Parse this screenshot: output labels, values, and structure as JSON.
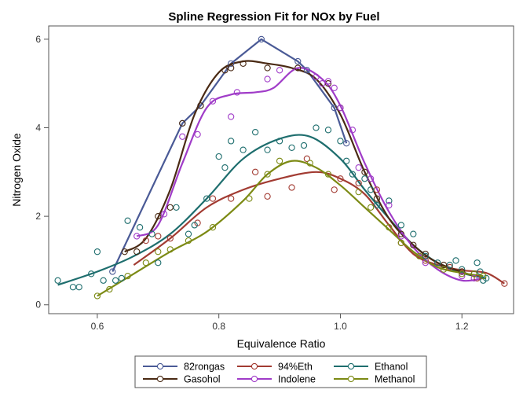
{
  "chart_data": {
    "type": "scatter",
    "title": "Spline Regression Fit for NOx by Fuel",
    "xlabel": "Equivalence Ratio",
    "ylabel": "Nitrogen Oxide",
    "xlim": [
      0.52,
      1.285
    ],
    "ylim": [
      -0.2,
      6.3
    ],
    "xticks": [
      0.6,
      0.8,
      1.0,
      1.2
    ],
    "yticks": [
      0,
      2,
      4,
      6
    ],
    "legend_position": "bottom",
    "series": [
      {
        "name": "82rongas",
        "color": "#4a5a96",
        "points": [
          [
            0.625,
            0.75
          ],
          [
            0.74,
            4.1
          ],
          [
            0.77,
            4.5
          ],
          [
            0.82,
            5.45
          ],
          [
            0.87,
            6.0
          ],
          [
            0.93,
            5.5
          ],
          [
            0.945,
            5.3
          ],
          [
            0.99,
            4.45
          ],
          [
            1.01,
            3.65
          ]
        ],
        "fit": [
          [
            0.625,
            0.75
          ],
          [
            0.74,
            4.1
          ],
          [
            0.77,
            4.5
          ],
          [
            0.82,
            5.45
          ],
          [
            0.87,
            6.0
          ],
          [
            0.93,
            5.5
          ],
          [
            0.945,
            5.3
          ],
          [
            0.99,
            4.45
          ],
          [
            1.01,
            3.65
          ]
        ]
      },
      {
        "name": "94%Eth",
        "color": "#a23b32",
        "points": [
          [
            0.68,
            1.45
          ],
          [
            0.7,
            1.55
          ],
          [
            0.72,
            1.5
          ],
          [
            0.765,
            1.85
          ],
          [
            0.79,
            2.4
          ],
          [
            0.82,
            2.4
          ],
          [
            0.86,
            3.0
          ],
          [
            0.88,
            2.45
          ],
          [
            0.92,
            2.65
          ],
          [
            0.945,
            3.3
          ],
          [
            0.99,
            2.6
          ],
          [
            1.0,
            2.85
          ],
          [
            1.03,
            2.75
          ],
          [
            1.06,
            2.6
          ],
          [
            1.1,
            1.4
          ],
          [
            1.14,
            1.0
          ],
          [
            1.18,
            0.85
          ],
          [
            1.2,
            0.75
          ],
          [
            1.225,
            0.6
          ],
          [
            1.27,
            0.48
          ]
        ],
        "fit": [
          [
            0.66,
            0.9
          ],
          [
            0.72,
            1.5
          ],
          [
            0.78,
            2.2
          ],
          [
            0.84,
            2.6
          ],
          [
            0.9,
            2.85
          ],
          [
            0.96,
            3.0
          ],
          [
            1.0,
            2.85
          ],
          [
            1.04,
            2.5
          ],
          [
            1.08,
            1.8
          ],
          [
            1.12,
            1.15
          ],
          [
            1.16,
            0.9
          ],
          [
            1.2,
            0.78
          ],
          [
            1.24,
            0.72
          ],
          [
            1.27,
            0.48
          ]
        ]
      },
      {
        "name": "Ethanol",
        "color": "#1e6e6e",
        "points": [
          [
            0.535,
            0.55
          ],
          [
            0.56,
            0.4
          ],
          [
            0.57,
            0.4
          ],
          [
            0.59,
            0.7
          ],
          [
            0.6,
            1.2
          ],
          [
            0.61,
            0.55
          ],
          [
            0.63,
            0.55
          ],
          [
            0.64,
            0.6
          ],
          [
            0.65,
            1.9
          ],
          [
            0.67,
            1.75
          ],
          [
            0.69,
            1.6
          ],
          [
            0.7,
            0.95
          ],
          [
            0.73,
            2.2
          ],
          [
            0.75,
            1.6
          ],
          [
            0.76,
            1.8
          ],
          [
            0.78,
            2.4
          ],
          [
            0.8,
            3.35
          ],
          [
            0.81,
            3.1
          ],
          [
            0.82,
            3.7
          ],
          [
            0.84,
            3.5
          ],
          [
            0.86,
            3.9
          ],
          [
            0.88,
            3.5
          ],
          [
            0.9,
            3.7
          ],
          [
            0.92,
            3.55
          ],
          [
            0.94,
            3.6
          ],
          [
            0.96,
            4.0
          ],
          [
            0.98,
            3.95
          ],
          [
            1.0,
            3.7
          ],
          [
            1.01,
            3.25
          ],
          [
            1.02,
            2.95
          ],
          [
            1.04,
            2.85
          ],
          [
            1.05,
            2.6
          ],
          [
            1.06,
            2.25
          ],
          [
            1.08,
            2.35
          ],
          [
            1.1,
            1.8
          ],
          [
            1.12,
            1.6
          ],
          [
            1.14,
            1.1
          ],
          [
            1.16,
            0.95
          ],
          [
            1.18,
            0.9
          ],
          [
            1.19,
            1.0
          ],
          [
            1.2,
            0.8
          ],
          [
            1.22,
            0.7
          ],
          [
            1.225,
            0.95
          ],
          [
            1.23,
            0.75
          ],
          [
            1.235,
            0.55
          ],
          [
            1.24,
            0.6
          ]
        ],
        "fit": [
          [
            0.535,
            0.45
          ],
          [
            0.6,
            0.75
          ],
          [
            0.66,
            1.1
          ],
          [
            0.72,
            1.6
          ],
          [
            0.78,
            2.4
          ],
          [
            0.84,
            3.3
          ],
          [
            0.9,
            3.75
          ],
          [
            0.95,
            3.8
          ],
          [
            1.0,
            3.3
          ],
          [
            1.04,
            2.6
          ],
          [
            1.08,
            1.95
          ],
          [
            1.12,
            1.35
          ],
          [
            1.16,
            0.95
          ],
          [
            1.2,
            0.72
          ],
          [
            1.24,
            0.6
          ]
        ]
      },
      {
        "name": "Gasohol",
        "color": "#4a2a14",
        "points": [
          [
            0.645,
            1.2
          ],
          [
            0.665,
            1.2
          ],
          [
            0.7,
            2.0
          ],
          [
            0.72,
            2.2
          ],
          [
            0.74,
            4.1
          ],
          [
            0.77,
            4.5
          ],
          [
            0.81,
            5.3
          ],
          [
            0.82,
            5.35
          ],
          [
            0.84,
            5.45
          ],
          [
            0.88,
            5.35
          ],
          [
            0.93,
            5.35
          ],
          [
            0.98,
            5.0
          ],
          [
            1.0,
            4.45
          ],
          [
            1.04,
            3.0
          ],
          [
            1.06,
            2.4
          ],
          [
            1.1,
            1.6
          ],
          [
            1.12,
            1.35
          ],
          [
            1.14,
            1.15
          ],
          [
            1.17,
            0.9
          ],
          [
            1.2,
            0.75
          ],
          [
            1.22,
            0.7
          ]
        ],
        "fit": [
          [
            0.645,
            1.2
          ],
          [
            0.68,
            1.5
          ],
          [
            0.72,
            2.6
          ],
          [
            0.76,
            4.3
          ],
          [
            0.8,
            5.25
          ],
          [
            0.84,
            5.5
          ],
          [
            0.88,
            5.45
          ],
          [
            0.92,
            5.35
          ],
          [
            0.96,
            5.1
          ],
          [
            1.0,
            4.3
          ],
          [
            1.04,
            3.0
          ],
          [
            1.08,
            1.95
          ],
          [
            1.12,
            1.35
          ],
          [
            1.16,
            0.95
          ],
          [
            1.22,
            0.65
          ]
        ]
      },
      {
        "name": "Indolene",
        "color": "#a03cc8",
        "points": [
          [
            0.665,
            1.55
          ],
          [
            0.71,
            2.05
          ],
          [
            0.74,
            3.8
          ],
          [
            0.765,
            3.85
          ],
          [
            0.79,
            4.6
          ],
          [
            0.82,
            4.25
          ],
          [
            0.83,
            4.8
          ],
          [
            0.88,
            5.1
          ],
          [
            0.9,
            5.3
          ],
          [
            0.96,
            5.15
          ],
          [
            0.97,
            5.0
          ],
          [
            0.98,
            5.05
          ],
          [
            0.99,
            4.9
          ],
          [
            1.0,
            4.45
          ],
          [
            1.02,
            3.95
          ],
          [
            1.03,
            3.1
          ],
          [
            1.05,
            2.85
          ],
          [
            1.08,
            2.25
          ],
          [
            1.1,
            1.55
          ],
          [
            1.14,
            0.95
          ],
          [
            1.2,
            0.65
          ],
          [
            1.22,
            0.6
          ]
        ],
        "fit": [
          [
            0.665,
            1.55
          ],
          [
            0.7,
            1.8
          ],
          [
            0.74,
            3.2
          ],
          [
            0.78,
            4.45
          ],
          [
            0.82,
            4.75
          ],
          [
            0.86,
            4.8
          ],
          [
            0.89,
            4.9
          ],
          [
            0.93,
            5.35
          ],
          [
            0.97,
            5.1
          ],
          [
            1.0,
            4.5
          ],
          [
            1.04,
            3.2
          ],
          [
            1.08,
            2.1
          ],
          [
            1.12,
            1.3
          ],
          [
            1.16,
            0.8
          ],
          [
            1.2,
            0.55
          ],
          [
            1.235,
            0.6
          ]
        ]
      },
      {
        "name": "Methanol",
        "color": "#7c8a14",
        "points": [
          [
            0.6,
            0.2
          ],
          [
            0.62,
            0.35
          ],
          [
            0.65,
            0.65
          ],
          [
            0.68,
            0.95
          ],
          [
            0.7,
            1.2
          ],
          [
            0.72,
            1.25
          ],
          [
            0.75,
            1.45
          ],
          [
            0.79,
            1.75
          ],
          [
            0.85,
            2.4
          ],
          [
            0.88,
            2.95
          ],
          [
            0.9,
            3.25
          ],
          [
            0.95,
            3.2
          ],
          [
            0.98,
            2.95
          ],
          [
            1.03,
            2.55
          ],
          [
            1.05,
            2.2
          ],
          [
            1.08,
            1.75
          ],
          [
            1.1,
            1.4
          ],
          [
            1.13,
            1.1
          ],
          [
            1.17,
            0.8
          ],
          [
            1.2,
            0.7
          ],
          [
            1.22,
            0.7
          ],
          [
            1.235,
            0.65
          ]
        ],
        "fit": [
          [
            0.6,
            0.2
          ],
          [
            0.66,
            0.7
          ],
          [
            0.72,
            1.2
          ],
          [
            0.78,
            1.65
          ],
          [
            0.84,
            2.35
          ],
          [
            0.88,
            2.95
          ],
          [
            0.92,
            3.25
          ],
          [
            0.96,
            3.1
          ],
          [
            1.0,
            2.7
          ],
          [
            1.04,
            2.2
          ],
          [
            1.08,
            1.7
          ],
          [
            1.12,
            1.2
          ],
          [
            1.16,
            0.85
          ],
          [
            1.2,
            0.72
          ],
          [
            1.235,
            0.65
          ]
        ]
      }
    ]
  }
}
